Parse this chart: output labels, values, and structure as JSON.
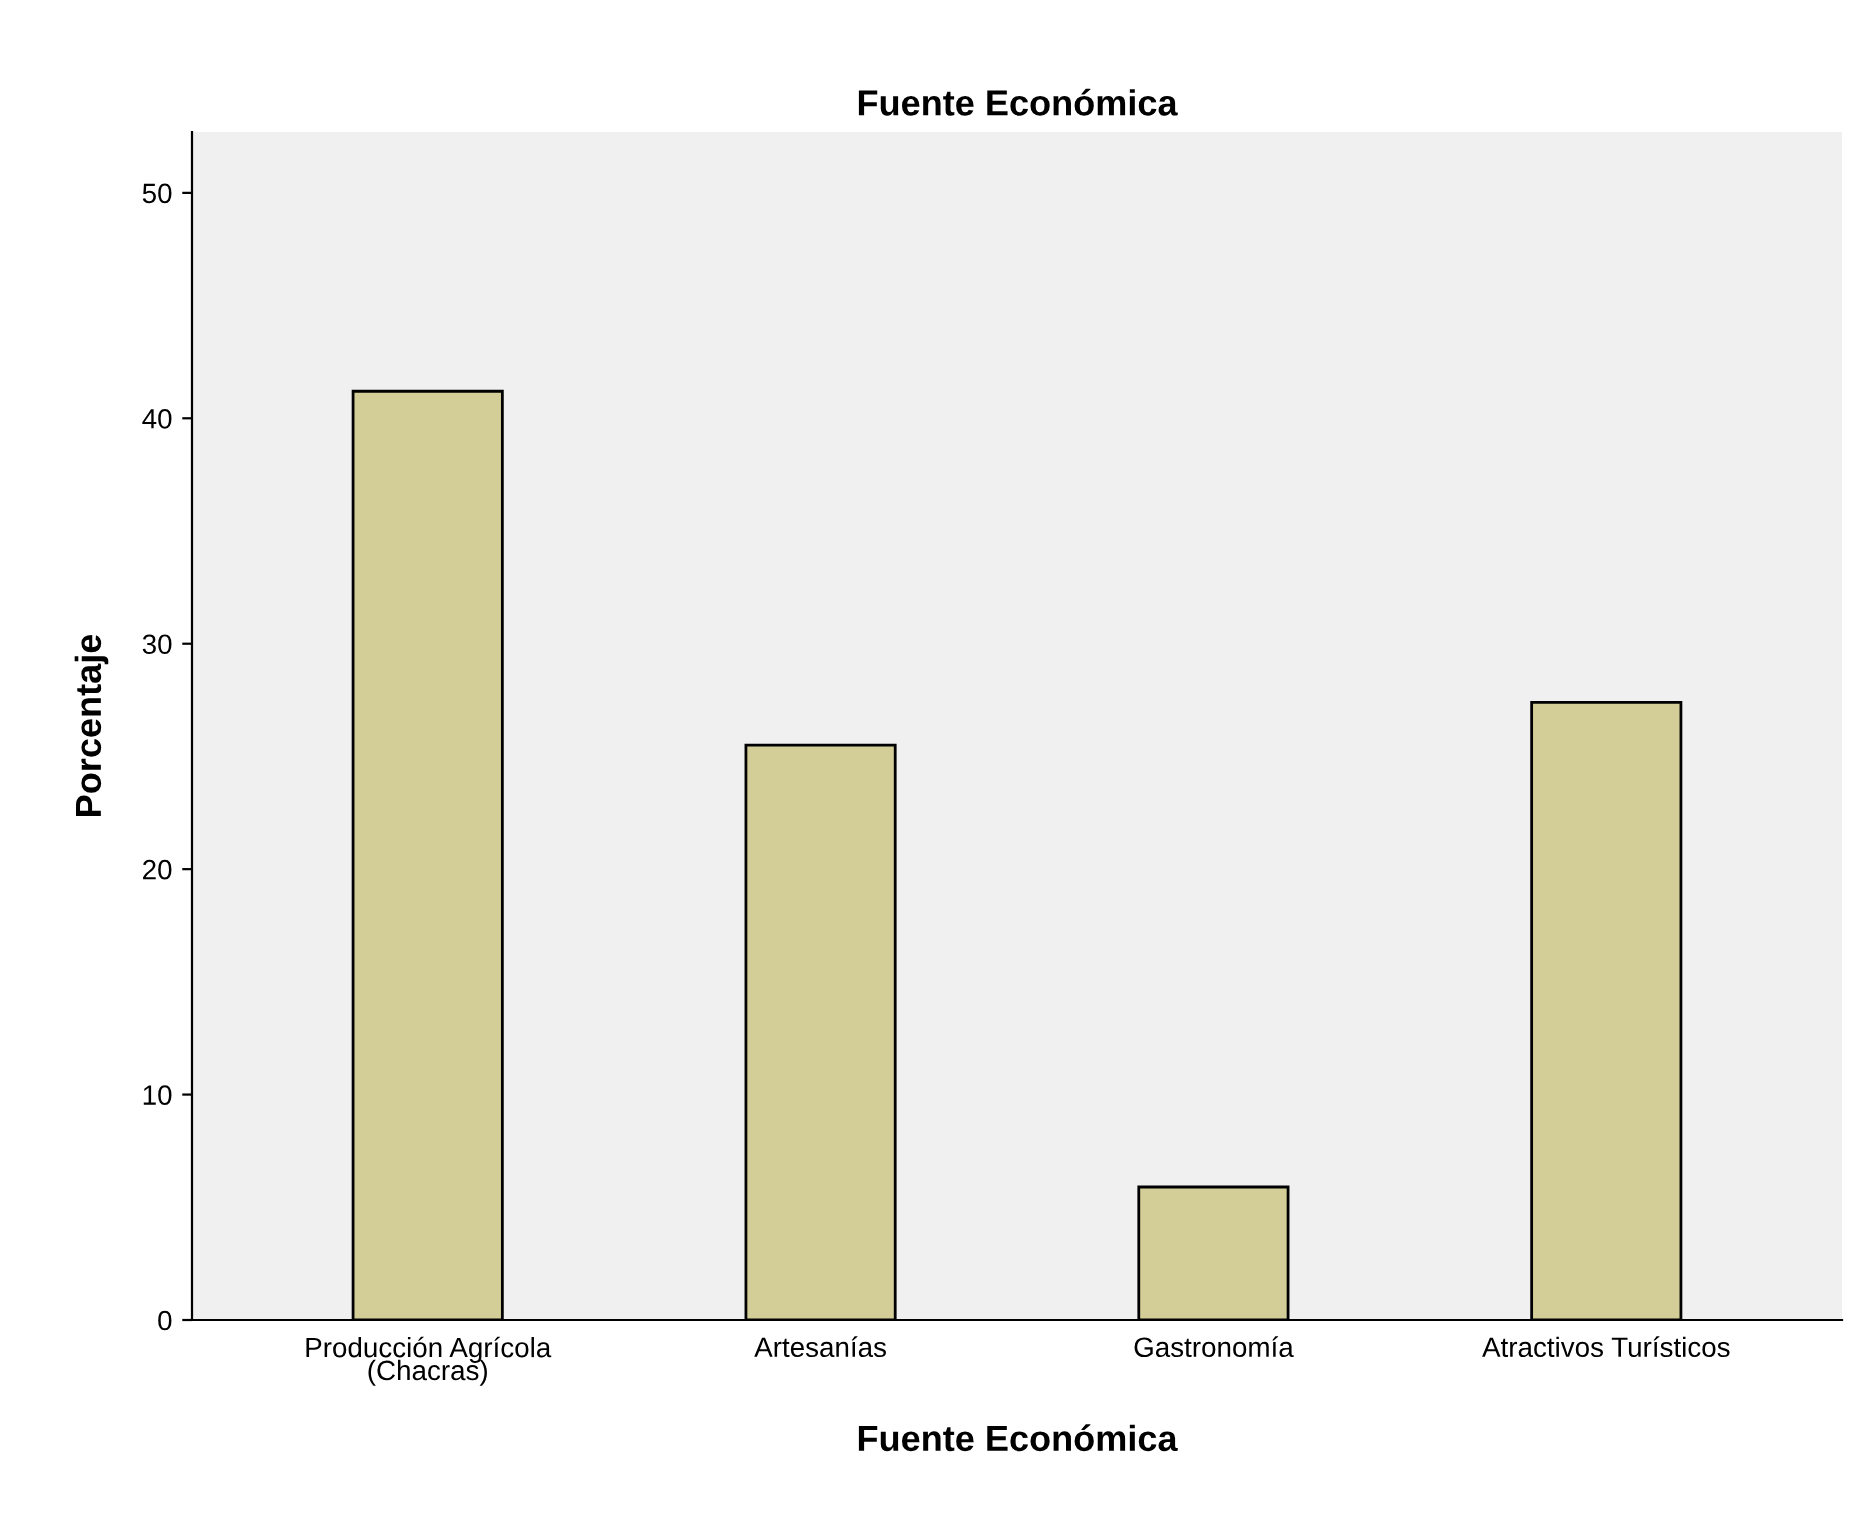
{
  "chart_data": {
    "type": "bar",
    "title": "Fuente Económica",
    "xlabel": "Fuente Económica",
    "ylabel": "Porcentaje",
    "categories": [
      "Producción Agrícola\n(Chacras)",
      "Artesanías",
      "Gastronomía",
      "Atractivos Turísticos"
    ],
    "values": [
      41.2,
      25.5,
      5.9,
      27.4
    ],
    "color": "#d3ce97",
    "ylim": [
      0,
      52.7
    ],
    "yticks": [
      0,
      10,
      20,
      30,
      40,
      50
    ],
    "grid": false
  }
}
